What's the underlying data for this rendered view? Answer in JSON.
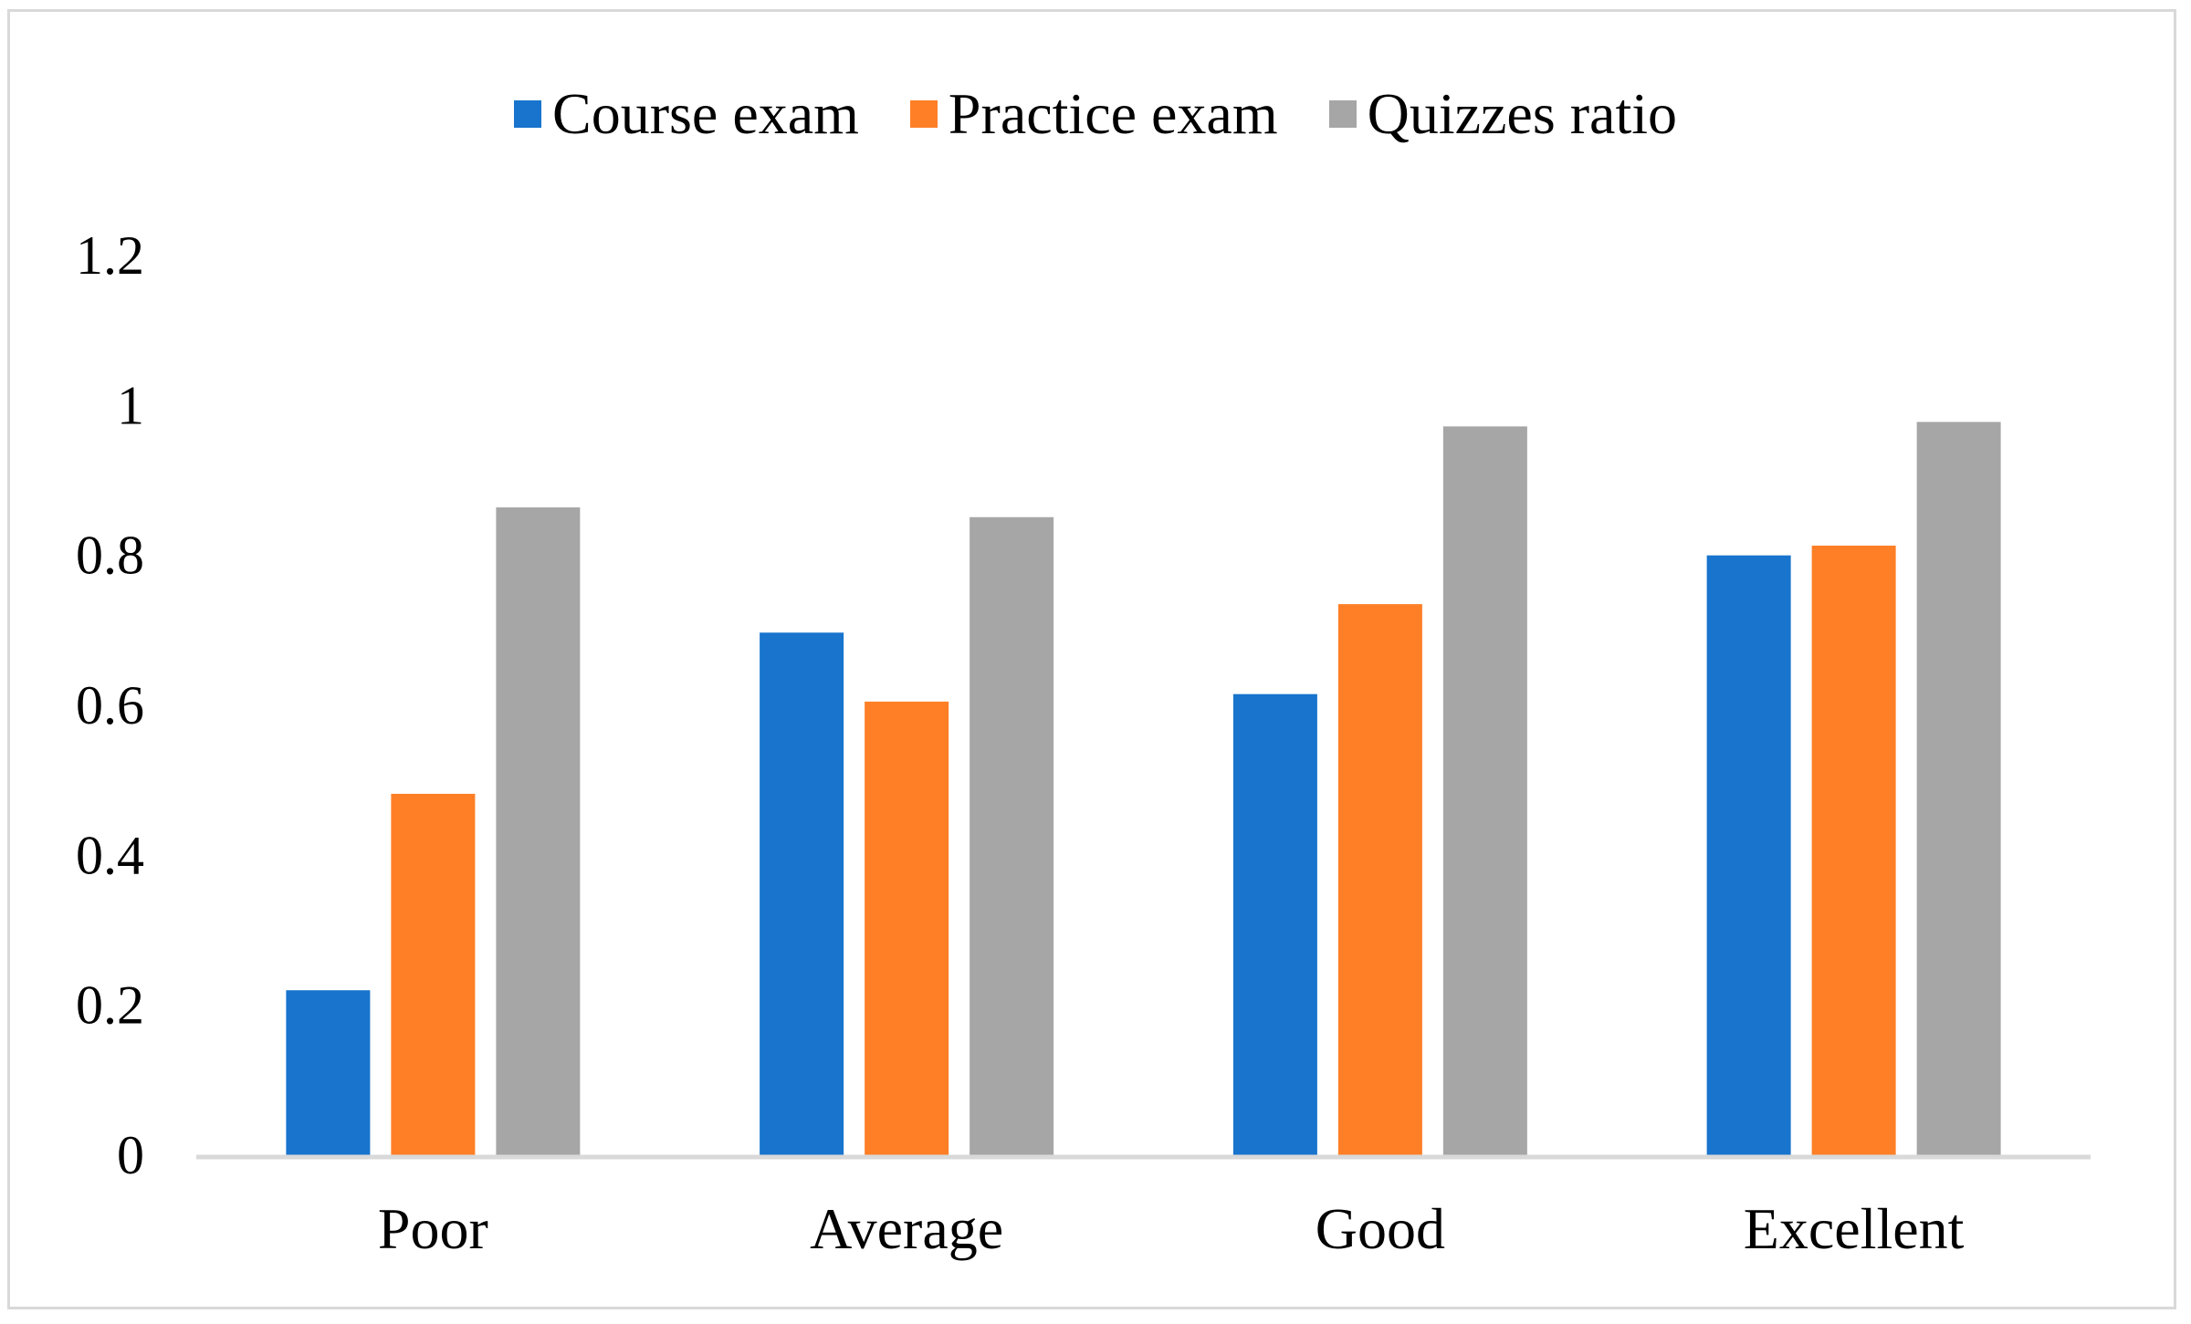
{
  "chart_data": {
    "type": "bar",
    "title": "",
    "xlabel": "",
    "ylabel": "",
    "categories": [
      "Poor",
      "Average",
      "Good",
      "Excellent"
    ],
    "series": [
      {
        "name": "Course exam",
        "color": "#1874CD",
        "values": [
          0.22,
          0.697,
          0.615,
          0.8
        ]
      },
      {
        "name": "Practice exam",
        "color": "#FF7F27",
        "values": [
          0.482,
          0.605,
          0.735,
          0.813
        ]
      },
      {
        "name": "Quizzes ratio",
        "color": "#A6A6A6",
        "values": [
          0.864,
          0.851,
          0.972,
          0.978
        ]
      }
    ],
    "ylim": [
      0,
      1.2
    ],
    "yticks": [
      "0",
      "0.2",
      "0.4",
      "0.6",
      "0.8",
      "1",
      "1.2"
    ],
    "legend_position": "top-center",
    "grid": false
  }
}
